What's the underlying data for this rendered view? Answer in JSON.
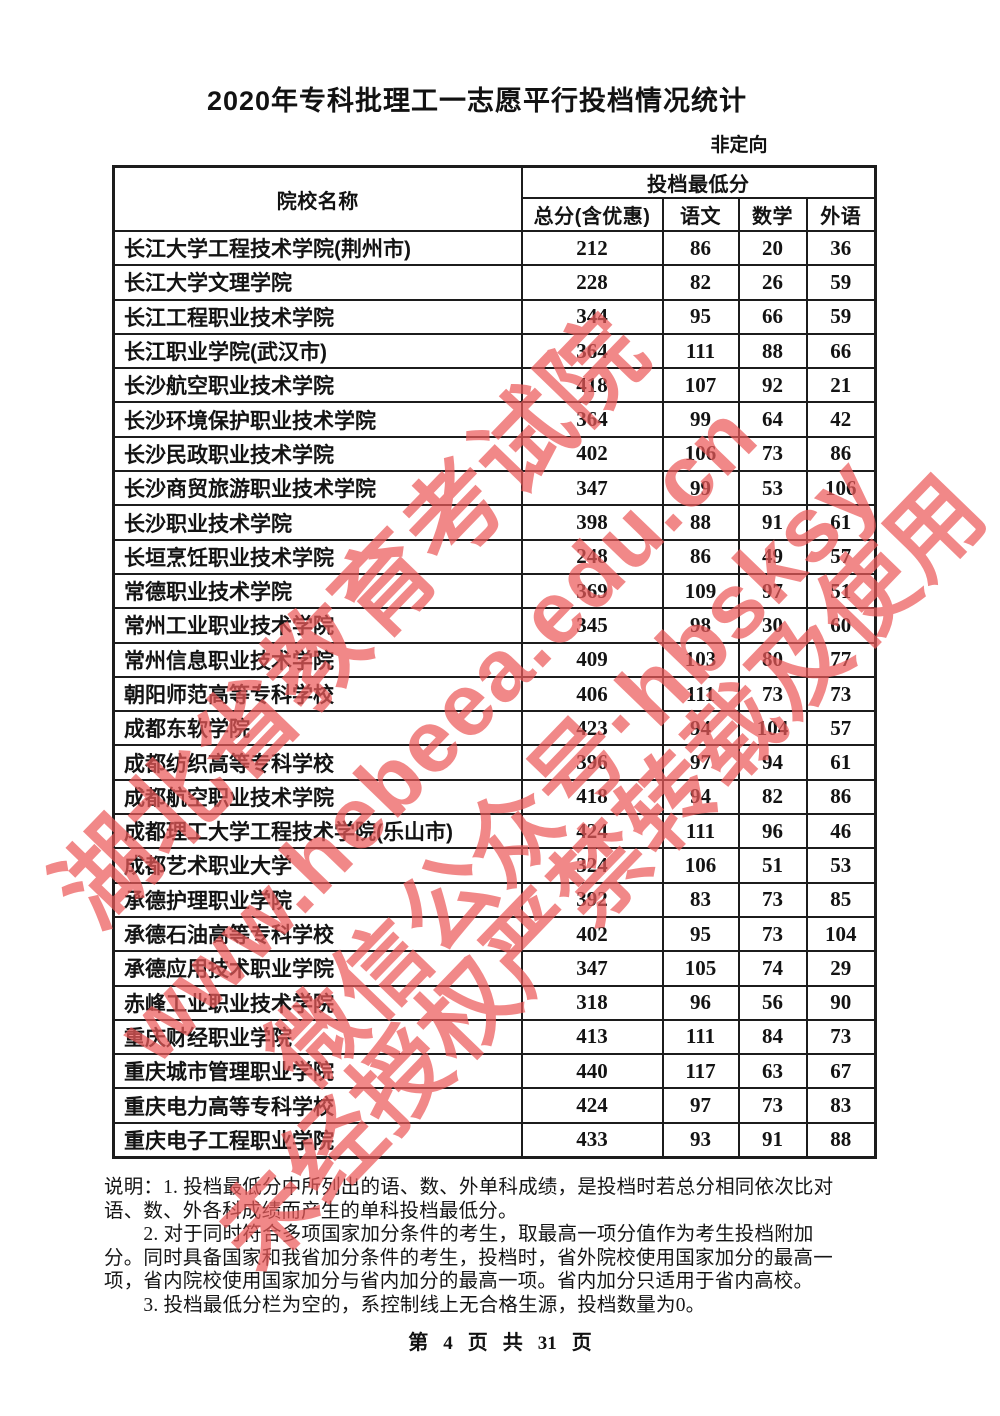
{
  "page": {
    "title": "2020年专科批理工一志愿平行投档情况统计",
    "orientation_label": "非定向"
  },
  "table": {
    "col_name_header": "院校名称",
    "group_header": "投档最低分",
    "sub_headers": [
      "总分(含优惠)",
      "语文",
      "数学",
      "外语"
    ],
    "rows": [
      {
        "name": "长江大学工程技术学院(荆州市)",
        "total": "212",
        "chinese": "86",
        "math": "20",
        "foreign": "36"
      },
      {
        "name": "长江大学文理学院",
        "total": "228",
        "chinese": "82",
        "math": "26",
        "foreign": "59"
      },
      {
        "name": "长江工程职业技术学院",
        "total": "344",
        "chinese": "95",
        "math": "66",
        "foreign": "59"
      },
      {
        "name": "长江职业学院(武汉市)",
        "total": "364",
        "chinese": "111",
        "math": "88",
        "foreign": "66"
      },
      {
        "name": "长沙航空职业技术学院",
        "total": "418",
        "chinese": "107",
        "math": "92",
        "foreign": "21"
      },
      {
        "name": "长沙环境保护职业技术学院",
        "total": "364",
        "chinese": "99",
        "math": "64",
        "foreign": "42"
      },
      {
        "name": "长沙民政职业技术学院",
        "total": "402",
        "chinese": "106",
        "math": "73",
        "foreign": "86"
      },
      {
        "name": "长沙商贸旅游职业技术学院",
        "total": "347",
        "chinese": "99",
        "math": "53",
        "foreign": "106"
      },
      {
        "name": "长沙职业技术学院",
        "total": "398",
        "chinese": "88",
        "math": "91",
        "foreign": "61"
      },
      {
        "name": "长垣烹饪职业技术学院",
        "total": "248",
        "chinese": "86",
        "math": "49",
        "foreign": "57"
      },
      {
        "name": "常德职业技术学院",
        "total": "369",
        "chinese": "109",
        "math": "97",
        "foreign": "51"
      },
      {
        "name": "常州工业职业技术学院",
        "total": "345",
        "chinese": "98",
        "math": "30",
        "foreign": "60"
      },
      {
        "name": "常州信息职业技术学院",
        "total": "409",
        "chinese": "103",
        "math": "80",
        "foreign": "77"
      },
      {
        "name": "朝阳师范高等专科学校",
        "total": "406",
        "chinese": "111",
        "math": "73",
        "foreign": "73"
      },
      {
        "name": "成都东软学院",
        "total": "423",
        "chinese": "94",
        "math": "104",
        "foreign": "57"
      },
      {
        "name": "成都纺织高等专科学校",
        "total": "396",
        "chinese": "97",
        "math": "94",
        "foreign": "61"
      },
      {
        "name": "成都航空职业技术学院",
        "total": "418",
        "chinese": "94",
        "math": "82",
        "foreign": "86"
      },
      {
        "name": "成都理工大学工程技术学院(乐山市)",
        "total": "424",
        "chinese": "111",
        "math": "96",
        "foreign": "46"
      },
      {
        "name": "成都艺术职业大学",
        "total": "324",
        "chinese": "106",
        "math": "51",
        "foreign": "53"
      },
      {
        "name": "承德护理职业学院",
        "total": "392",
        "chinese": "83",
        "math": "73",
        "foreign": "85"
      },
      {
        "name": "承德石油高等专科学校",
        "total": "402",
        "chinese": "95",
        "math": "73",
        "foreign": "104"
      },
      {
        "name": "承德应用技术职业学院",
        "total": "347",
        "chinese": "105",
        "math": "74",
        "foreign": "29"
      },
      {
        "name": "赤峰工业职业技术学院",
        "total": "318",
        "chinese": "96",
        "math": "56",
        "foreign": "90"
      },
      {
        "name": "重庆财经职业学院",
        "total": "413",
        "chinese": "111",
        "math": "84",
        "foreign": "73"
      },
      {
        "name": "重庆城市管理职业学院",
        "total": "440",
        "chinese": "117",
        "math": "63",
        "foreign": "67"
      },
      {
        "name": "重庆电力高等专科学校",
        "total": "424",
        "chinese": "97",
        "math": "73",
        "foreign": "83"
      },
      {
        "name": "重庆电子工程职业学院",
        "total": "433",
        "chinese": "93",
        "math": "91",
        "foreign": "88"
      }
    ]
  },
  "notes": {
    "lines": [
      "说明：1. 投档最低分中所列出的语、数、外单科成绩，是投档时若总分相同依次比对",
      "语、数、外各科成绩而产生的单科投档最低分。",
      "　　2. 对于同时符合多项国家加分条件的考生，取最高一项分值作为考生投档附加",
      "分。同时具备国家和我省加分条件的考生，投档时，省外院校使用国家加分的最高一",
      "项，省内院校使用国家加分与省内加分的最高一项。省内加分只适用于省内高校。",
      "　　3. 投档最低分栏为空的，系控制线上无合格生源，投档数量为0。"
    ]
  },
  "footer": {
    "parts": [
      "第",
      "4",
      "页",
      "共",
      "31",
      "页"
    ]
  },
  "watermark": {
    "color": "#eb5a5a",
    "lines": [
      "湖北省教育考试院",
      "www.hebeea.edu.cn",
      "微信公众号·hbsksy",
      "未经授权严禁转载及使用"
    ]
  }
}
